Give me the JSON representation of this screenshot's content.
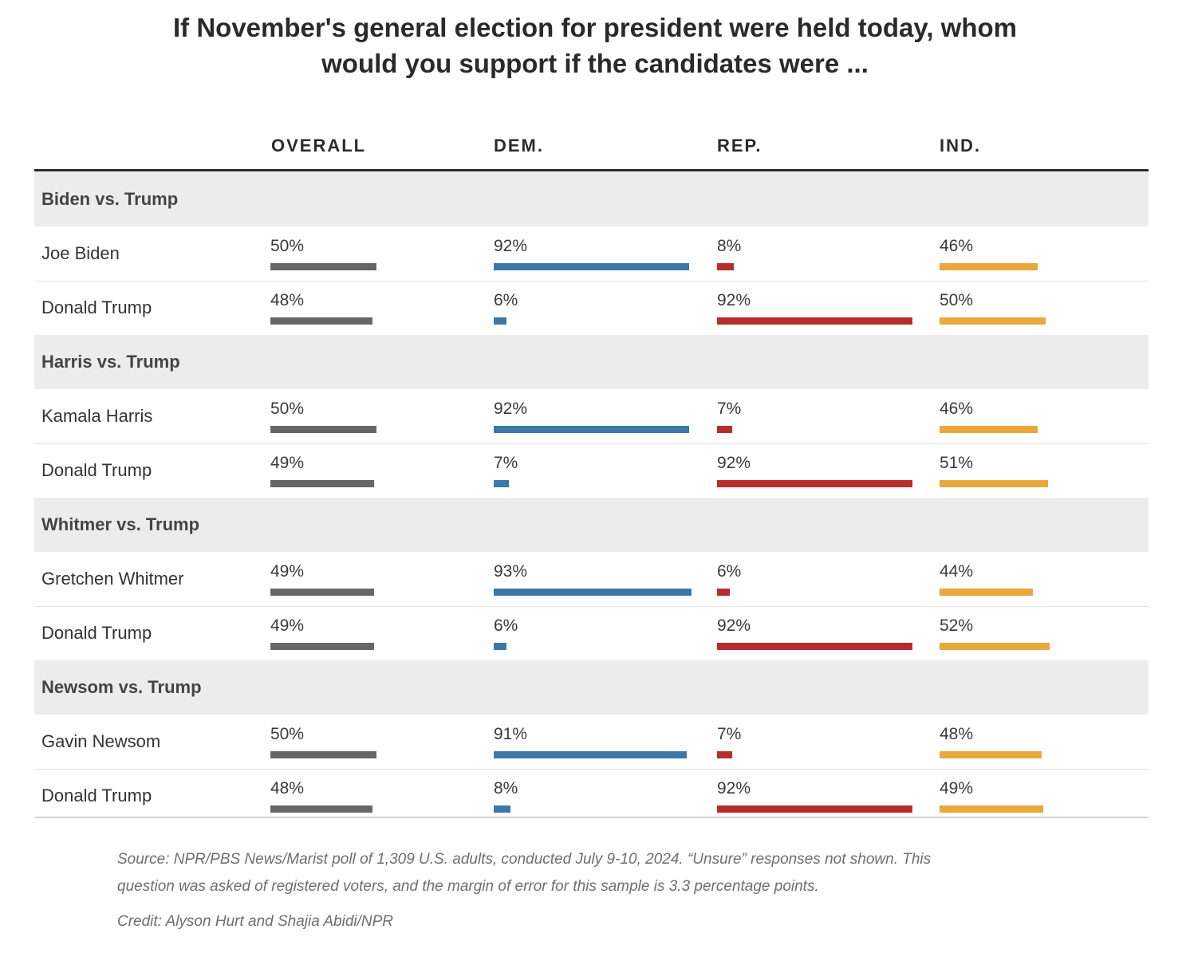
{
  "title_line1": "If November's general election for president were held today, whom",
  "title_line2": "would you support if the candidates were ...",
  "chart_data": {
    "type": "bar",
    "title": "If November's general election for president were held today, whom would you support if the candidates were ...",
    "columns": [
      {
        "key": "overall",
        "label": "OVERALL",
        "color": "#666666"
      },
      {
        "key": "dem",
        "label": "DEM.",
        "color": "#3d77a8"
      },
      {
        "key": "rep",
        "label": "REP.",
        "color": "#b72d2d"
      },
      {
        "key": "ind",
        "label": "IND.",
        "color": "#e8a83c"
      }
    ],
    "unit": "%",
    "groups": [
      {
        "label": "Biden vs. Trump",
        "rows": [
          {
            "candidate": "Joe Biden",
            "values": [
              50,
              92,
              8,
              46
            ]
          },
          {
            "candidate": "Donald Trump",
            "values": [
              48,
              6,
              92,
              50
            ]
          }
        ]
      },
      {
        "label": "Harris vs. Trump",
        "rows": [
          {
            "candidate": "Kamala Harris",
            "values": [
              50,
              92,
              7,
              46
            ]
          },
          {
            "candidate": "Donald Trump",
            "values": [
              49,
              7,
              92,
              51
            ]
          }
        ]
      },
      {
        "label": "Whitmer vs. Trump",
        "rows": [
          {
            "candidate": "Gretchen Whitmer",
            "values": [
              49,
              93,
              6,
              44
            ]
          },
          {
            "candidate": "Donald Trump",
            "values": [
              49,
              6,
              92,
              52
            ]
          }
        ]
      },
      {
        "label": "Newsom vs. Trump",
        "rows": [
          {
            "candidate": "Gavin Newsom",
            "values": [
              50,
              91,
              7,
              48
            ]
          },
          {
            "candidate": "Donald Trump",
            "values": [
              48,
              8,
              92,
              49
            ]
          }
        ]
      }
    ]
  },
  "source_line1": "Source: NPR/PBS News/Marist poll of 1,309 U.S. adults, conducted July 9-10, 2024. “Unsure” responses not shown. This",
  "source_line2": "question was asked of registered voters, and the margin of error for this sample is 3.3 percentage points.",
  "credit": "Credit: Alyson Hurt and Shajia Abidi/NPR"
}
